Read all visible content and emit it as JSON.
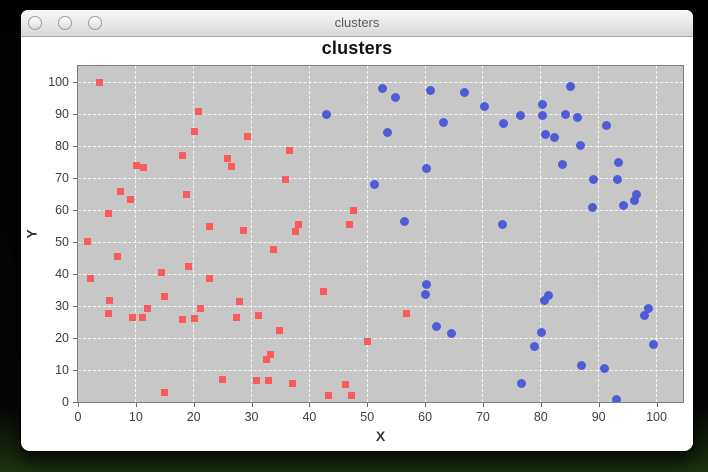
{
  "window": {
    "title": "clusters"
  },
  "chart": {
    "title": "clusters",
    "x_axis_label": "X",
    "y_axis_label": "Y"
  },
  "colors": {
    "plot_background": "#c7c7c7",
    "plot_border": "#7c7c7c",
    "gridline": "#fbfbfb",
    "red_cluster": "#fa5b5b",
    "blue_cluster": "#4e5cd6"
  },
  "chart_data": {
    "type": "scatter",
    "title": "clusters",
    "xlabel": "X",
    "ylabel": "Y",
    "xlim": [
      0,
      100
    ],
    "ylim": [
      0,
      100
    ],
    "x_ticks": [
      0,
      10,
      20,
      30,
      40,
      50,
      60,
      70,
      80,
      90,
      100
    ],
    "y_ticks": [
      0,
      10,
      20,
      30,
      40,
      50,
      60,
      70,
      80,
      90,
      100
    ],
    "grid": true,
    "legend": false,
    "series": [
      {
        "name": "red-squares",
        "marker": "square",
        "color": "#fa5b5b",
        "points": [
          [
            3.8,
            100
          ],
          [
            20.9,
            90.7
          ],
          [
            20.1,
            84.4
          ],
          [
            29.3,
            83.1
          ],
          [
            18.1,
            76.9
          ],
          [
            25.8,
            76.2
          ],
          [
            26.5,
            73.6
          ],
          [
            10.1,
            74
          ],
          [
            11.4,
            73.2
          ],
          [
            7.3,
            65.9
          ],
          [
            9.1,
            63.3
          ],
          [
            18.7,
            64.8
          ],
          [
            5.2,
            58.9
          ],
          [
            22.8,
            54.8
          ],
          [
            36.5,
            78.7
          ],
          [
            35.9,
            69.5
          ],
          [
            47.6,
            59.9
          ],
          [
            47,
            55.6
          ],
          [
            38.2,
            55.6
          ],
          [
            37.6,
            53.4
          ],
          [
            28.6,
            53.5
          ],
          [
            1.6,
            50.1
          ],
          [
            6.8,
            45.6
          ],
          [
            19.1,
            42.4
          ],
          [
            14.5,
            40.5
          ],
          [
            2.1,
            38.5
          ],
          [
            22.8,
            38.6
          ],
          [
            33.8,
            47.7
          ],
          [
            15,
            32.9
          ],
          [
            5.4,
            31.7
          ],
          [
            12.1,
            29.3
          ],
          [
            5.2,
            27.7
          ],
          [
            9.5,
            26.4
          ],
          [
            11.2,
            26.4
          ],
          [
            18,
            25.8
          ],
          [
            20.2,
            26.2
          ],
          [
            21.1,
            29.1
          ],
          [
            27.9,
            31.3
          ],
          [
            27.4,
            26.3
          ],
          [
            31.2,
            27
          ],
          [
            34.8,
            22.4
          ],
          [
            32.6,
            13.3
          ],
          [
            33.2,
            14.7
          ],
          [
            30.9,
            6.8
          ],
          [
            33,
            6.7
          ],
          [
            25,
            7.1
          ],
          [
            14.9,
            2.9
          ],
          [
            42.4,
            34.4
          ],
          [
            56.7,
            27.6
          ],
          [
            50.1,
            19
          ],
          [
            37,
            5.8
          ],
          [
            46.3,
            5.5
          ],
          [
            43.3,
            2.1
          ],
          [
            47.3,
            1.9
          ]
        ]
      },
      {
        "name": "blue-circles",
        "marker": "circle",
        "color": "#4e5cd6",
        "points": [
          [
            52.6,
            98
          ],
          [
            54.8,
            95.1
          ],
          [
            42.9,
            89.9
          ],
          [
            61,
            97.2
          ],
          [
            66.8,
            96.6
          ],
          [
            70.2,
            92.2
          ],
          [
            63.1,
            87.4
          ],
          [
            53.5,
            84.1
          ],
          [
            60.3,
            73
          ],
          [
            51.3,
            68
          ],
          [
            56.5,
            56.4
          ],
          [
            85.2,
            98.7
          ],
          [
            80.3,
            93
          ],
          [
            76.5,
            89.6
          ],
          [
            80.3,
            89.4
          ],
          [
            84.3,
            89.8
          ],
          [
            86.4,
            88.8
          ],
          [
            73.5,
            87
          ],
          [
            91.4,
            86.4
          ],
          [
            80.8,
            83.6
          ],
          [
            82.3,
            82.7
          ],
          [
            86.9,
            80.1
          ],
          [
            83.7,
            74.3
          ],
          [
            93.4,
            74.9
          ],
          [
            89.1,
            69.6
          ],
          [
            93.3,
            69.6
          ],
          [
            96.6,
            64.9
          ],
          [
            96.2,
            63
          ],
          [
            94.3,
            61.3
          ],
          [
            88.9,
            60.7
          ],
          [
            73.4,
            55.6
          ],
          [
            60.3,
            36.7
          ],
          [
            60.1,
            33.5
          ],
          [
            62,
            23.7
          ],
          [
            64.6,
            21.3
          ],
          [
            81.3,
            33.3
          ],
          [
            80.6,
            31.7
          ],
          [
            98.6,
            29.3
          ],
          [
            98,
            26.9
          ],
          [
            80.1,
            21.6
          ],
          [
            78.9,
            17.4
          ],
          [
            99.4,
            17.9
          ],
          [
            87.1,
            11.4
          ],
          [
            91,
            10.4
          ],
          [
            76.6,
            5.8
          ],
          [
            93.1,
            0.8
          ]
        ]
      }
    ]
  }
}
